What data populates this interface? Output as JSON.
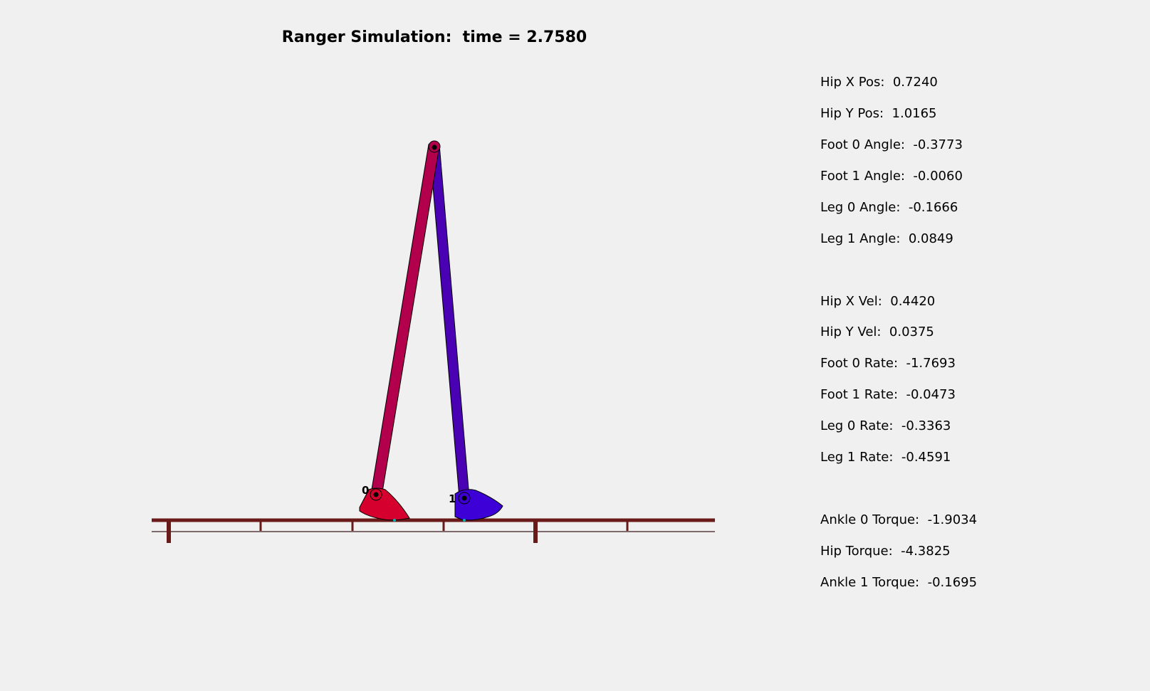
{
  "title": {
    "prefix": "Ranger Simulation:  time = ",
    "time": "2.7580"
  },
  "robot": {
    "foot0_label": "0",
    "foot1_label": "1",
    "colors": {
      "leg0": "#b3004d",
      "leg1": "#4a00b3",
      "foot0": "#d6002e",
      "foot1": "#3d00d6",
      "ground": "#6b1a1a",
      "contact": "#00b3b3"
    }
  },
  "readouts": {
    "position": [
      {
        "label": "Hip X Pos:  ",
        "value": "0.7240"
      },
      {
        "label": "Hip Y Pos:  ",
        "value": "1.0165"
      },
      {
        "label": "Foot 0 Angle:  ",
        "value": "-0.3773"
      },
      {
        "label": "Foot 1 Angle:  ",
        "value": "-0.0060"
      },
      {
        "label": "Leg 0 Angle:  ",
        "value": "-0.1666"
      },
      {
        "label": "Leg 1 Angle:  ",
        "value": "0.0849"
      }
    ],
    "velocity": [
      {
        "label": "Hip X Vel:  ",
        "value": "0.4420"
      },
      {
        "label": "Hip Y Vel:  ",
        "value": "0.0375"
      },
      {
        "label": "Foot 0 Rate:  ",
        "value": "-1.7693"
      },
      {
        "label": "Foot 1 Rate:  ",
        "value": "-0.0473"
      },
      {
        "label": "Leg 0 Rate:  ",
        "value": "-0.3363"
      },
      {
        "label": "Leg 1 Rate:  ",
        "value": "-0.4591"
      }
    ],
    "torque": [
      {
        "label": "Ankle 0 Torque:  ",
        "value": "-1.9034"
      },
      {
        "label": "Hip Torque:  ",
        "value": "-4.3825"
      },
      {
        "label": "Ankle 1 Torque:  ",
        "value": "-0.1695"
      }
    ]
  }
}
